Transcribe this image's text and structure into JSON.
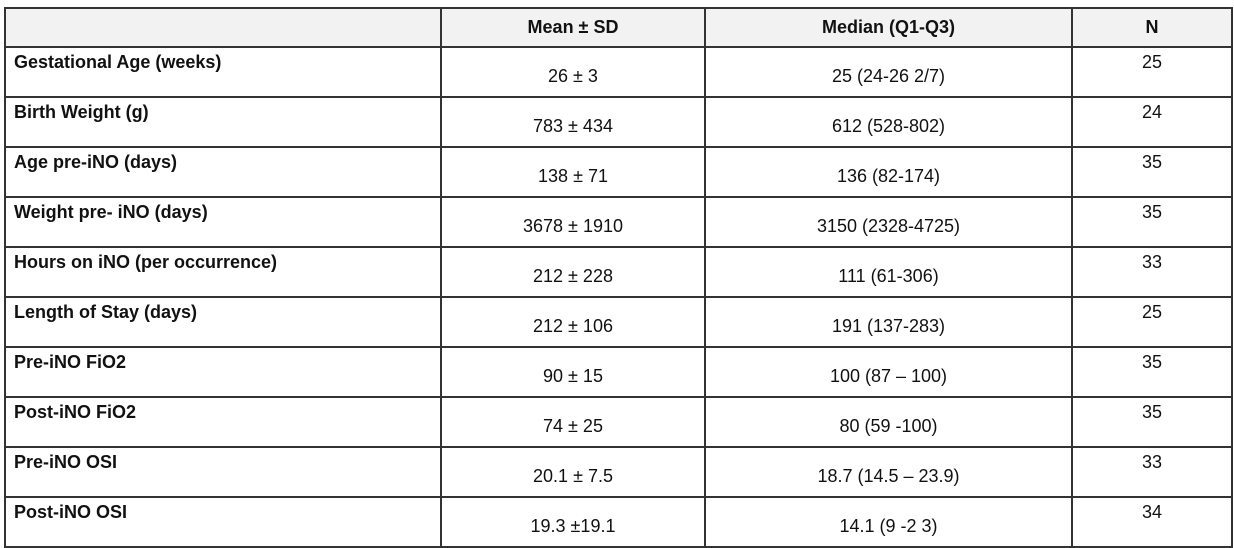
{
  "table": {
    "columns": [
      "Mean ± SD",
      "Median (Q1-Q3)",
      "N"
    ],
    "rows": [
      [
        "Gestational Age (weeks)",
        "26 ± 3",
        "25 (24-26 2/7)",
        "25"
      ],
      [
        "Birth Weight (g)",
        "783 ± 434",
        "612 (528-802)",
        "24"
      ],
      [
        "Age pre-iNO (days)",
        "138 ± 71",
        "136 (82-174)",
        "35"
      ],
      [
        "Weight pre- iNO (days)",
        "3678 ± 1910",
        "3150 (2328-4725)",
        "35"
      ],
      [
        "Hours on iNO (per occurrence)",
        "212 ± 228",
        "111 (61-306)",
        "33"
      ],
      [
        "Length of Stay (days)",
        "212 ± 106",
        "191 (137-283)",
        "25"
      ],
      [
        "Pre-iNO FiO2",
        "90 ± 15",
        "100 (87 – 100)",
        "35"
      ],
      [
        "Post-iNO FiO2",
        "74 ± 25",
        "80 (59 -100)",
        "35"
      ],
      [
        "Pre-iNO OSI",
        "20.1 ± 7.5",
        "18.7 (14.5 – 23.9)",
        "33"
      ],
      [
        "Post-iNO OSI",
        "19.3 ±19.1",
        "14.1 (9 -2 3)",
        "34"
      ]
    ]
  }
}
